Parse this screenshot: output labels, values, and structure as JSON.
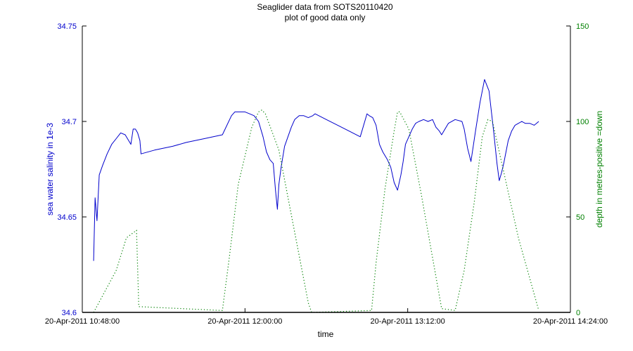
{
  "chart_data": {
    "type": "line",
    "title": "Seaglider data from SOTS20110420",
    "subtitle": "plot of good data only",
    "xlabel": "time",
    "ylabel_left": "sea water salinity in 1e-3",
    "ylabel_right": "depth in metres-positive =down",
    "x_ticks": [
      "20-Apr-2011 10:48:00",
      "20-Apr-2011 12:00:00",
      "20-Apr-2011 13:12:00",
      "20-Apr-2011 14:24:00"
    ],
    "xlim": [
      "20-Apr-2011 10:48:00",
      "20-Apr-2011 14:24:00"
    ],
    "y_left_ticks": [
      "34.6",
      "34.65",
      "34.7",
      "34.75"
    ],
    "y_left_lim": [
      34.6,
      34.75
    ],
    "y_right_ticks": [
      "0",
      "50",
      "100",
      "150"
    ],
    "y_right_lim": [
      0,
      150
    ],
    "grid": false,
    "colors": {
      "salinity": "#0000cc",
      "depth": "#008000",
      "axes": "#000000"
    },
    "series": [
      {
        "axis": "left",
        "style": "solid",
        "x": [
          "10:53:00",
          "10:53:40",
          "10:54:30",
          "10:55:30",
          "10:57:00",
          "10:59:00",
          "11:01:00",
          "11:03:00",
          "11:05:00",
          "11:07:00",
          "11:08:30",
          "11:09:30",
          "11:10:30",
          "11:11:30",
          "11:12:30",
          "11:13:30",
          "11:14:00",
          "11:20:00",
          "11:28:00",
          "11:34:00",
          "11:42:00",
          "11:50:00",
          "11:54:00",
          "11:55:30",
          "11:57:00",
          "11:58:30",
          "12:00:00",
          "12:02:00",
          "12:04:00",
          "12:06:00",
          "12:08:00",
          "12:09:30",
          "12:11:00",
          "12:12:30",
          "12:13:30",
          "12:14:20",
          "12:15:00",
          "12:16:00",
          "12:17:30",
          "12:19:00",
          "12:20:30",
          "12:22:00",
          "12:24:00",
          "12:26:00",
          "12:28:00",
          "12:30:00",
          "12:31:00",
          "12:36:00",
          "12:41:00",
          "12:46:00",
          "12:51:00",
          "12:54:00",
          "12:55:00",
          "12:56:30",
          "12:58:00",
          "12:59:30",
          "13:01:00",
          "13:03:00",
          "13:04:30",
          "13:06:00",
          "13:07:30",
          "13:09:00",
          "13:10:00",
          "13:11:00",
          "13:12:30",
          "13:14:00",
          "13:15:30",
          "13:17:00",
          "13:19:00",
          "13:21:00",
          "13:23:00",
          "13:24:30",
          "13:26:00",
          "13:27:00",
          "13:30:00",
          "13:33:00",
          "13:36:00",
          "13:37:00",
          "13:38:30",
          "13:40:00",
          "13:42:00",
          "13:44:00",
          "13:46:00",
          "13:48:00",
          "13:50:00",
          "13:51:30",
          "13:52:30",
          "13:53:30",
          "13:54:30",
          "13:55:30",
          "13:56:30",
          "13:58:00",
          "13:59:30",
          "14:01:00",
          "14:02:30",
          "14:04:00",
          "14:06:00",
          "14:08:00",
          "14:09:00",
          "14:10:00"
        ],
        "y": [
          34.627,
          34.66,
          34.648,
          34.672,
          34.677,
          34.683,
          34.688,
          34.691,
          34.694,
          34.693,
          34.69,
          34.688,
          34.696,
          34.696,
          34.694,
          34.69,
          34.683,
          34.685,
          34.687,
          34.689,
          34.691,
          34.693,
          34.703,
          34.705,
          34.705,
          34.705,
          34.705,
          34.704,
          34.703,
          34.7,
          34.692,
          34.684,
          34.68,
          34.678,
          34.664,
          34.654,
          34.667,
          34.676,
          34.687,
          34.692,
          34.697,
          34.701,
          34.703,
          34.703,
          34.702,
          34.703,
          34.704,
          34.701,
          34.698,
          34.695,
          34.692,
          34.704,
          34.703,
          34.702,
          34.698,
          34.688,
          34.684,
          34.68,
          34.676,
          34.668,
          34.664,
          34.672,
          34.679,
          34.688,
          34.692,
          34.696,
          34.699,
          34.7,
          34.701,
          34.7,
          34.701,
          34.697,
          34.695,
          34.693,
          34.699,
          34.701,
          34.7,
          34.696,
          34.686,
          34.679,
          34.695,
          34.71,
          34.722,
          34.716,
          34.695,
          34.678,
          34.669,
          34.673,
          34.678,
          34.684,
          34.69,
          34.695,
          34.698,
          34.699,
          34.7,
          34.699,
          34.699,
          34.698,
          34.699,
          34.7
        ]
      },
      {
        "axis": "right",
        "style": "dotted",
        "x": [
          "10:53:00",
          "11:03:00",
          "11:07:30",
          "11:12:00",
          "11:13:00",
          "11:50:00",
          "11:53:00",
          "11:57:00",
          "12:03:00",
          "12:06:00",
          "12:07:30",
          "12:09:00",
          "12:15:00",
          "12:21:00",
          "12:28:00",
          "12:29:30",
          "12:56:00",
          "12:58:00",
          "13:02:00",
          "13:06:00",
          "13:07:30",
          "13:08:30",
          "13:12:30",
          "13:18:00",
          "13:27:00",
          "13:33:00",
          "13:37:00",
          "13:41:30",
          "13:45:00",
          "13:47:30",
          "13:49:30",
          "14:01:00",
          "14:10:00"
        ],
        "y": [
          0,
          22,
          39,
          43,
          3,
          1,
          28,
          67,
          97,
          105,
          106,
          104,
          85,
          48,
          5,
          0,
          1,
          26,
          65,
          95,
          105,
          105,
          96,
          62,
          2,
          1,
          22,
          58,
          92,
          101,
          100,
          39,
          1
        ]
      }
    ]
  }
}
